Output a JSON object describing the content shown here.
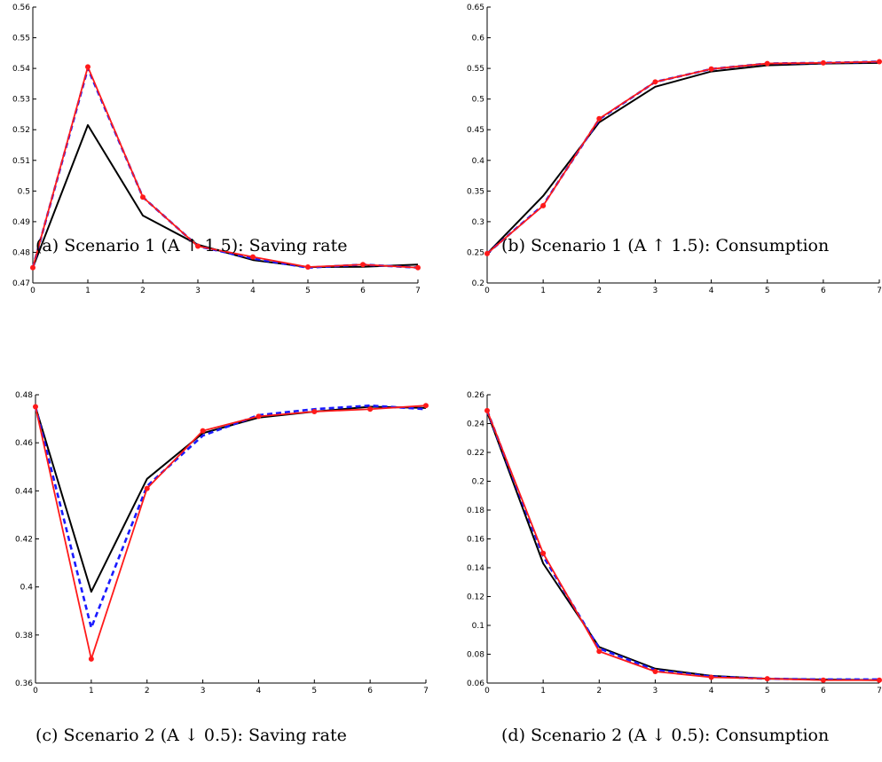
{
  "colors": {
    "black_series": "#000000",
    "blue_series": "#1a1aff",
    "red_series": "#ff1a1a",
    "axis": "#000000"
  },
  "chart_data": [
    {
      "type": "line",
      "caption": "(a) Scenario 1 (A ↑ 1.5): Saving rate",
      "x": [
        0,
        1,
        2,
        3,
        4,
        5,
        6,
        7
      ],
      "xticks": [
        "0",
        "1",
        "2",
        "3",
        "4",
        "5",
        "6",
        "7"
      ],
      "yticks": [
        "0.47",
        "0.48",
        "0.49",
        "0.5",
        "0.51",
        "0.52",
        "0.53",
        "0.54",
        "0.55",
        "0.56"
      ],
      "xlim": [
        0,
        7
      ],
      "ylim": [
        0.47,
        0.56
      ],
      "series": [
        {
          "style": "solid-black",
          "values": [
            0.475,
            0.5215,
            0.492,
            0.4825,
            0.4775,
            0.4752,
            0.4753,
            0.476
          ]
        },
        {
          "style": "dashed-blue",
          "values": [
            0.475,
            0.54,
            0.498,
            0.482,
            0.478,
            0.475,
            0.476,
            0.475
          ]
        },
        {
          "style": "solid-red-dots",
          "values": [
            0.475,
            0.5405,
            0.498,
            0.482,
            0.4785,
            0.4752,
            0.476,
            0.475
          ]
        }
      ]
    },
    {
      "type": "line",
      "caption": "(b) Scenario 1 (A ↑ 1.5): Consumption",
      "x": [
        0,
        1,
        2,
        3,
        4,
        5,
        6,
        7
      ],
      "xticks": [
        "0",
        "1",
        "2",
        "3",
        "4",
        "5",
        "6",
        "7"
      ],
      "yticks": [
        "0.2",
        "0.25",
        "0.3",
        "0.35",
        "0.4",
        "0.45",
        "0.5",
        "0.55",
        "0.6",
        "0.65"
      ],
      "xlim": [
        0,
        7
      ],
      "ylim": [
        0.2,
        0.65
      ],
      "series": [
        {
          "style": "solid-black",
          "values": [
            0.248,
            0.342,
            0.462,
            0.52,
            0.545,
            0.555,
            0.558,
            0.559
          ]
        },
        {
          "style": "dashed-blue",
          "values": [
            0.248,
            0.327,
            0.467,
            0.528,
            0.549,
            0.558,
            0.559,
            0.561
          ]
        },
        {
          "style": "solid-red-dots",
          "values": [
            0.248,
            0.326,
            0.468,
            0.528,
            0.549,
            0.558,
            0.559,
            0.561
          ]
        }
      ]
    },
    {
      "type": "line",
      "caption": "(c) Scenario 2 (A ↓ 0.5): Saving rate",
      "x": [
        0,
        1,
        2,
        3,
        4,
        5,
        6,
        7
      ],
      "xticks": [
        "0",
        "1",
        "2",
        "3",
        "4",
        "5",
        "6",
        "7"
      ],
      "yticks": [
        "0.36",
        "0.38",
        "0.4",
        "0.42",
        "0.44",
        "0.46",
        "0.48"
      ],
      "xlim": [
        0,
        7
      ],
      "ylim": [
        0.36,
        0.48
      ],
      "series": [
        {
          "style": "solid-black",
          "values": [
            0.475,
            0.398,
            0.445,
            0.464,
            0.4705,
            0.473,
            0.475,
            0.4745
          ]
        },
        {
          "style": "dashed-blue",
          "values": [
            0.475,
            0.383,
            0.442,
            0.463,
            0.4715,
            0.474,
            0.4755,
            0.474
          ]
        },
        {
          "style": "solid-red-dots",
          "values": [
            0.475,
            0.37,
            0.441,
            0.465,
            0.471,
            0.473,
            0.474,
            0.4755
          ]
        }
      ]
    },
    {
      "type": "line",
      "caption": "(d) Scenario 2 (A ↓ 0.5): Consumption",
      "x": [
        0,
        1,
        2,
        3,
        4,
        5,
        6,
        7
      ],
      "xticks": [
        "0",
        "1",
        "2",
        "3",
        "4",
        "5",
        "6",
        "7"
      ],
      "yticks": [
        "0.06",
        "0.08",
        "0.1",
        "0.12",
        "0.14",
        "0.16",
        "0.18",
        "0.2",
        "0.22",
        "0.24",
        "0.26"
      ],
      "xlim": [
        0,
        7
      ],
      "ylim": [
        0.06,
        0.26
      ],
      "series": [
        {
          "style": "solid-black",
          "values": [
            0.248,
            0.143,
            0.085,
            0.07,
            0.065,
            0.063,
            0.0625,
            0.062
          ]
        },
        {
          "style": "dashed-blue",
          "values": [
            0.249,
            0.148,
            0.084,
            0.069,
            0.0645,
            0.063,
            0.0625,
            0.0625
          ]
        },
        {
          "style": "solid-red-dots",
          "values": [
            0.249,
            0.15,
            0.082,
            0.068,
            0.064,
            0.063,
            0.062,
            0.062
          ]
        }
      ]
    }
  ]
}
